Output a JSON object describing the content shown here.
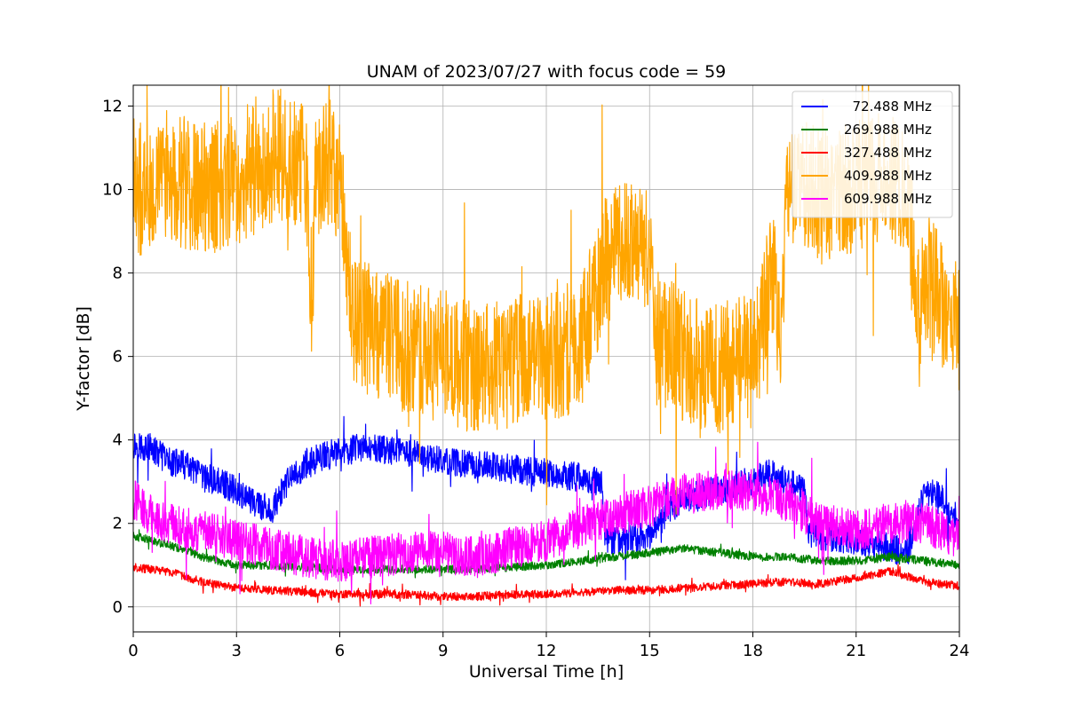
{
  "chart_data": {
    "type": "line",
    "title": "UNAM of 2023/07/27 with focus code = 59",
    "xlabel": "Universal Time [h]",
    "ylabel": "Y-factor [dB]",
    "xlim": [
      0,
      24
    ],
    "ylim": [
      -0.6,
      12.5
    ],
    "xticks": [
      0,
      3,
      6,
      9,
      12,
      15,
      18,
      21,
      24
    ],
    "xtick_labels": [
      "0",
      "3",
      "6",
      "9",
      "12",
      "15",
      "18",
      "21",
      "24"
    ],
    "yticks": [
      0,
      2,
      4,
      6,
      8,
      10,
      12
    ],
    "ytick_labels": [
      "0",
      "2",
      "4",
      "6",
      "8",
      "10",
      "12"
    ],
    "grid": true,
    "legend_position": "top-right",
    "series": [
      {
        "name": "  72.488 MHz",
        "color": "#0000ff",
        "noise": 0.35,
        "x": [
          0,
          0.5,
          1,
          1.5,
          2,
          2.5,
          3,
          3.5,
          4,
          4.5,
          5,
          5.5,
          6,
          6.5,
          7,
          8,
          9,
          10,
          11,
          12,
          13,
          13.6,
          13.7,
          14,
          15,
          15.5,
          16,
          17,
          18,
          18.5,
          19,
          19.5,
          19.6,
          20,
          21,
          22,
          22.5,
          23,
          23.5,
          24
        ],
        "y": [
          3.9,
          3.8,
          3.5,
          3.4,
          3.1,
          3.0,
          2.8,
          2.5,
          2.3,
          3.0,
          3.4,
          3.6,
          3.7,
          3.8,
          3.8,
          3.7,
          3.5,
          3.4,
          3.3,
          3.2,
          3.1,
          3.0,
          1.6,
          1.6,
          1.7,
          2.3,
          2.6,
          2.8,
          3.0,
          3.2,
          3.0,
          2.8,
          1.8,
          1.7,
          1.6,
          1.4,
          1.3,
          2.8,
          2.6,
          1.8
        ]
      },
      {
        "name": "269.988 MHz",
        "color": "#008000",
        "noise": 0.1,
        "x": [
          0,
          1,
          2,
          3,
          4,
          5,
          6,
          7,
          8,
          9,
          10,
          11,
          12,
          13,
          14,
          15,
          16,
          17,
          18,
          19,
          20,
          21,
          22,
          23,
          24
        ],
        "y": [
          1.7,
          1.5,
          1.2,
          1.0,
          1.0,
          0.95,
          0.9,
          0.9,
          0.9,
          0.9,
          0.9,
          0.95,
          1.0,
          1.1,
          1.2,
          1.3,
          1.4,
          1.3,
          1.2,
          1.2,
          1.1,
          1.1,
          1.2,
          1.1,
          1.0
        ]
      },
      {
        "name": "327.488 MHz",
        "color": "#ff0000",
        "noise": 0.1,
        "x": [
          0,
          1,
          2,
          3,
          4,
          5,
          6,
          7,
          8,
          9,
          10,
          11,
          12,
          13,
          14,
          15,
          16,
          17,
          18,
          19,
          20,
          21,
          22,
          23,
          24
        ],
        "y": [
          0.95,
          0.85,
          0.6,
          0.45,
          0.4,
          0.35,
          0.3,
          0.3,
          0.3,
          0.25,
          0.25,
          0.3,
          0.3,
          0.35,
          0.4,
          0.4,
          0.45,
          0.5,
          0.55,
          0.6,
          0.55,
          0.7,
          0.85,
          0.6,
          0.5
        ]
      },
      {
        "name": "409.988 MHz",
        "color": "#ffa500",
        "noise": 1.6,
        "x": [
          0,
          0.5,
          1,
          2,
          3,
          4,
          4.5,
          5,
          5.2,
          5.3,
          5.6,
          6,
          6.2,
          6.4,
          7,
          8,
          9,
          10,
          11,
          12,
          13,
          13.7,
          14,
          14.5,
          15,
          15.1,
          16,
          17,
          18,
          18.6,
          18.8,
          19,
          20,
          21,
          22,
          22.5,
          22.8,
          23,
          24
        ],
        "y": [
          9.9,
          10.2,
          10.3,
          10.0,
          10.2,
          10.8,
          10.9,
          10.5,
          7.0,
          10.2,
          10.7,
          10.3,
          8.5,
          7.0,
          6.5,
          6.2,
          6.0,
          5.7,
          5.9,
          6.0,
          6.3,
          8.3,
          8.6,
          8.7,
          8.5,
          6.5,
          6.0,
          5.7,
          5.9,
          8.0,
          6.0,
          10.4,
          9.8,
          10.1,
          10.3,
          10.0,
          7.0,
          8.0,
          6.5
        ]
      },
      {
        "name": "609.988 MHz",
        "color": "#ff00ff",
        "noise": 0.5,
        "x": [
          0,
          0.5,
          1,
          2,
          3,
          4,
          5,
          6,
          7,
          8,
          9,
          10,
          11,
          12,
          13,
          14,
          15,
          16,
          17,
          18,
          19,
          20,
          21,
          22,
          23,
          24
        ],
        "y": [
          2.6,
          2.2,
          2.0,
          1.8,
          1.6,
          1.4,
          1.2,
          1.1,
          1.2,
          1.3,
          1.3,
          1.2,
          1.4,
          1.6,
          1.9,
          2.2,
          2.4,
          2.7,
          2.8,
          2.8,
          2.5,
          2.0,
          1.8,
          2.0,
          2.0,
          1.6
        ]
      }
    ]
  }
}
